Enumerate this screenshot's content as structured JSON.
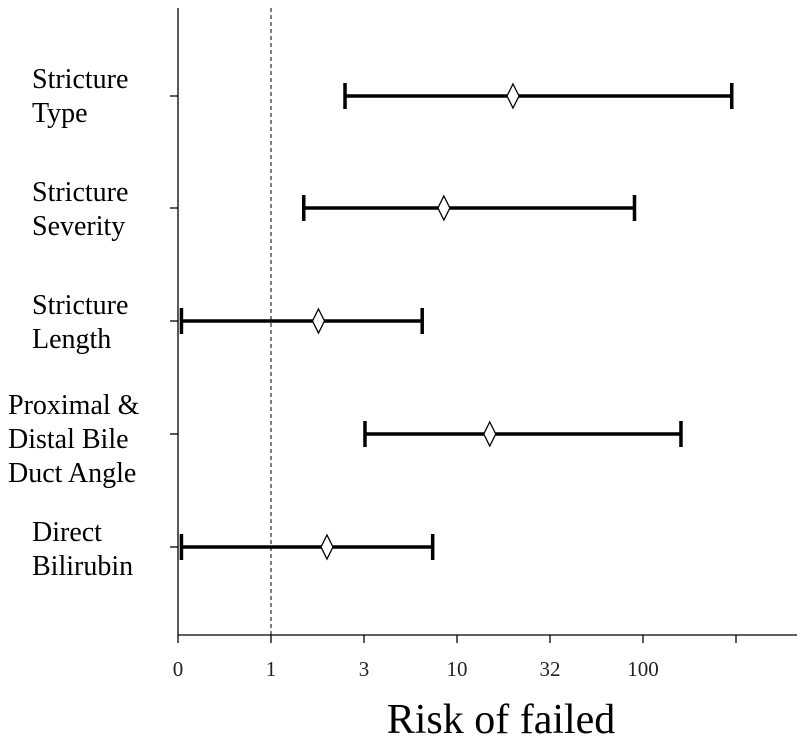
{
  "chart_data": {
    "type": "forest",
    "xlabel": "Risk of failed",
    "x_scale": "log",
    "x_ticks": [
      "0",
      "1",
      "3",
      "10",
      "32",
      "100",
      ""
    ],
    "reference_line": 1,
    "grid": false,
    "categories": [
      [
        "Stricture",
        "Type"
      ],
      [
        "Stricture",
        "Severity"
      ],
      [
        "Stricture",
        "Length"
      ],
      [
        "Proximal &",
        "Distal Bile",
        "Duct Angle"
      ],
      [
        "Direct",
        "Bilirubin"
      ]
    ],
    "estimates": [
      {
        "estimate": 20,
        "lower": 2.5,
        "upper": 300
      },
      {
        "estimate": 8.5,
        "lower": 1.5,
        "upper": 90
      },
      {
        "estimate": 1.8,
        "lower": 0.33,
        "upper": 6.5
      },
      {
        "estimate": 15,
        "lower": 3.2,
        "upper": 160
      },
      {
        "estimate": 2,
        "lower": 0.33,
        "upper": 7.4
      }
    ]
  }
}
